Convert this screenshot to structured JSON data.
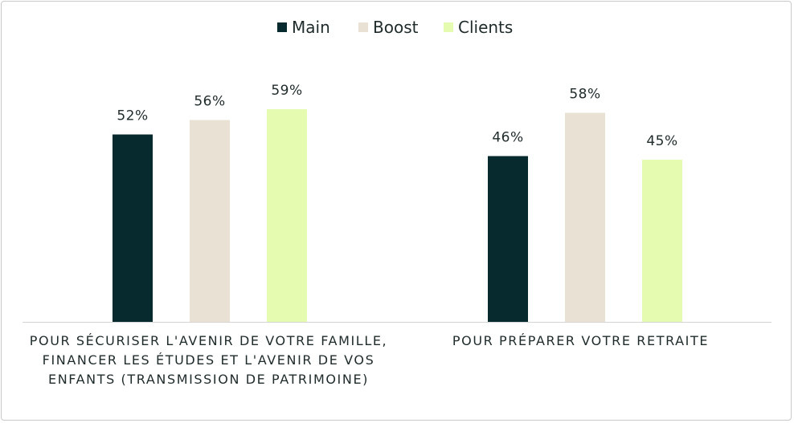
{
  "chart_data": {
    "type": "bar",
    "categories": [
      "POUR SÉCURISER L'AVENIR DE VOTRE FAMILLE, FINANCER LES ÉTUDES ET L'AVENIR DE VOS ENFANTS (TRANSMISSION DE PATRIMOINE)",
      "POUR PRÉPARER VOTRE RETRAITE"
    ],
    "series": [
      {
        "name": "Main",
        "values": [
          52,
          46
        ],
        "labels": [
          "52%",
          "46%"
        ],
        "color": "#062a2e"
      },
      {
        "name": "Boost",
        "values": [
          56,
          58
        ],
        "labels": [
          "56%",
          "58%"
        ],
        "color": "#e9e1d3"
      },
      {
        "name": "Clients",
        "values": [
          59,
          45
        ],
        "labels": [
          "59%",
          "45%"
        ],
        "color": "#e5fbb0"
      }
    ],
    "unit": "%",
    "legend_position": "top-center",
    "grid": false
  }
}
